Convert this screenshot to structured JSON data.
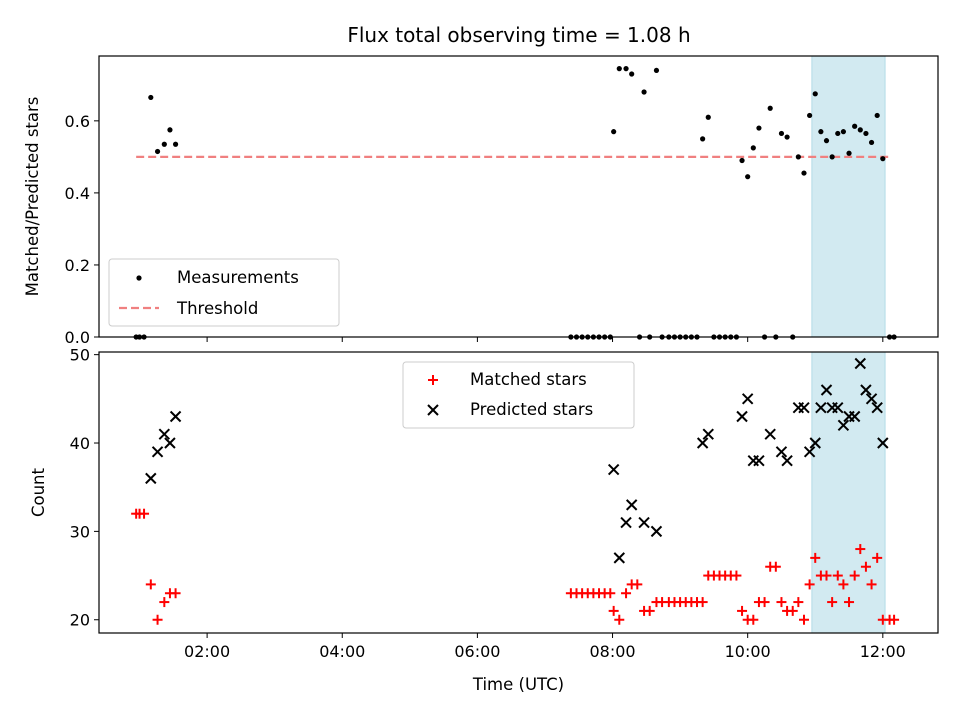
{
  "chart_data": [
    {
      "type": "scatter",
      "title": "Flux total observing time = 1.08 h",
      "xlabel": "",
      "ylabel": "Matched/Predicted stars",
      "xlim": [
        "00:24",
        "12:49"
      ],
      "ylim": [
        0.0,
        0.78
      ],
      "yticks": [
        "0.0",
        "0.2",
        "0.4",
        "0.6"
      ],
      "ytick_values": [
        0.0,
        0.2,
        0.4,
        0.6
      ],
      "legend_position": "lower-left",
      "threshold": {
        "name": "Threshold",
        "y": 0.5,
        "x_start": "00:57",
        "x_end": "12:05",
        "color": "#f08080"
      },
      "highlight_band": {
        "x_start": "10:57",
        "x_end": "12:02",
        "color": "#add8e6"
      },
      "series": [
        {
          "name": "Measurements",
          "color": "#000000",
          "points": [
            [
              "00:57",
              0.0
            ],
            [
              "01:00",
              0.0
            ],
            [
              "01:04",
              0.0
            ],
            [
              "01:10",
              0.665
            ],
            [
              "01:16",
              0.515
            ],
            [
              "01:22",
              0.535
            ],
            [
              "01:27",
              0.575
            ],
            [
              "01:32",
              0.535
            ],
            [
              "07:23",
              0.0
            ],
            [
              "07:28",
              0.0
            ],
            [
              "07:33",
              0.0
            ],
            [
              "07:38",
              0.0
            ],
            [
              "07:43",
              0.0
            ],
            [
              "07:48",
              0.0
            ],
            [
              "07:53",
              0.0
            ],
            [
              "07:58",
              0.0
            ],
            [
              "08:01",
              0.57
            ],
            [
              "08:06",
              0.745
            ],
            [
              "08:12",
              0.745
            ],
            [
              "08:17",
              0.73
            ],
            [
              "08:24",
              0.0
            ],
            [
              "08:28",
              0.68
            ],
            [
              "08:33",
              0.0
            ],
            [
              "08:39",
              0.74
            ],
            [
              "08:44",
              0.0
            ],
            [
              "08:50",
              0.0
            ],
            [
              "08:55",
              0.0
            ],
            [
              "09:00",
              0.0
            ],
            [
              "09:05",
              0.0
            ],
            [
              "09:10",
              0.0
            ],
            [
              "09:15",
              0.0
            ],
            [
              "09:20",
              0.55
            ],
            [
              "09:25",
              0.61
            ],
            [
              "09:30",
              0.0
            ],
            [
              "09:35",
              0.0
            ],
            [
              "09:40",
              0.0
            ],
            [
              "09:45",
              0.0
            ],
            [
              "09:50",
              0.0
            ],
            [
              "09:55",
              0.49
            ],
            [
              "10:00",
              0.445
            ],
            [
              "10:05",
              0.525
            ],
            [
              "10:10",
              0.58
            ],
            [
              "10:15",
              0.0
            ],
            [
              "10:20",
              0.635
            ],
            [
              "10:25",
              0.0
            ],
            [
              "10:30",
              0.565
            ],
            [
              "10:35",
              0.555
            ],
            [
              "10:40",
              0.0
            ],
            [
              "10:45",
              0.5
            ],
            [
              "10:50",
              0.455
            ],
            [
              "10:55",
              0.615
            ],
            [
              "11:00",
              0.675
            ],
            [
              "11:05",
              0.57
            ],
            [
              "11:10",
              0.545
            ],
            [
              "11:15",
              0.5
            ],
            [
              "11:20",
              0.565
            ],
            [
              "11:25",
              0.57
            ],
            [
              "11:30",
              0.51
            ],
            [
              "11:35",
              0.585
            ],
            [
              "11:40",
              0.575
            ],
            [
              "11:45",
              0.565
            ],
            [
              "11:50",
              0.54
            ],
            [
              "11:55",
              0.615
            ],
            [
              "12:00",
              0.495
            ],
            [
              "12:06",
              0.0
            ],
            [
              "12:10",
              0.0
            ]
          ]
        }
      ]
    },
    {
      "type": "scatter",
      "title": "",
      "xlabel": "Time (UTC)",
      "ylabel": "Count",
      "xlim": [
        "00:24",
        "12:49"
      ],
      "ylim": [
        18.5,
        50.3
      ],
      "yticks": [
        "20",
        "30",
        "40",
        "50"
      ],
      "ytick_values": [
        20,
        30,
        40,
        50
      ],
      "xticks": [
        "02:00",
        "04:00",
        "06:00",
        "08:00",
        "10:00",
        "12:00"
      ],
      "legend_position": "top-center",
      "highlight_band": {
        "x_start": "10:57",
        "x_end": "12:02",
        "color": "#add8e6"
      },
      "series": [
        {
          "name": "Matched stars",
          "marker": "plus",
          "color": "#ff0000",
          "points": [
            [
              "00:57",
              32
            ],
            [
              "01:00",
              32
            ],
            [
              "01:04",
              32
            ],
            [
              "01:10",
              24
            ],
            [
              "01:16",
              20
            ],
            [
              "01:22",
              22
            ],
            [
              "01:27",
              23
            ],
            [
              "01:32",
              23
            ],
            [
              "07:23",
              23
            ],
            [
              "07:28",
              23
            ],
            [
              "07:33",
              23
            ],
            [
              "07:38",
              23
            ],
            [
              "07:43",
              23
            ],
            [
              "07:48",
              23
            ],
            [
              "07:53",
              23
            ],
            [
              "07:58",
              23
            ],
            [
              "08:01",
              21
            ],
            [
              "08:06",
              20
            ],
            [
              "08:12",
              23
            ],
            [
              "08:17",
              24
            ],
            [
              "08:22",
              24
            ],
            [
              "08:28",
              21
            ],
            [
              "08:33",
              21
            ],
            [
              "08:39",
              22
            ],
            [
              "08:44",
              22
            ],
            [
              "08:50",
              22
            ],
            [
              "08:55",
              22
            ],
            [
              "09:00",
              22
            ],
            [
              "09:05",
              22
            ],
            [
              "09:10",
              22
            ],
            [
              "09:15",
              22
            ],
            [
              "09:20",
              22
            ],
            [
              "09:25",
              25
            ],
            [
              "09:30",
              25
            ],
            [
              "09:35",
              25
            ],
            [
              "09:40",
              25
            ],
            [
              "09:45",
              25
            ],
            [
              "09:50",
              25
            ],
            [
              "09:55",
              21
            ],
            [
              "10:00",
              20
            ],
            [
              "10:05",
              20
            ],
            [
              "10:10",
              22
            ],
            [
              "10:15",
              22
            ],
            [
              "10:20",
              26
            ],
            [
              "10:25",
              26
            ],
            [
              "10:30",
              22
            ],
            [
              "10:35",
              21
            ],
            [
              "10:40",
              21
            ],
            [
              "10:45",
              22
            ],
            [
              "10:50",
              20
            ],
            [
              "10:55",
              24
            ],
            [
              "11:00",
              27
            ],
            [
              "11:05",
              25
            ],
            [
              "11:10",
              25
            ],
            [
              "11:15",
              22
            ],
            [
              "11:20",
              25
            ],
            [
              "11:25",
              24
            ],
            [
              "11:30",
              22
            ],
            [
              "11:35",
              25
            ],
            [
              "11:40",
              28
            ],
            [
              "11:45",
              26
            ],
            [
              "11:50",
              24
            ],
            [
              "11:55",
              27
            ],
            [
              "12:00",
              20
            ],
            [
              "12:06",
              20
            ],
            [
              "12:10",
              20
            ]
          ]
        },
        {
          "name": "Predicted stars",
          "marker": "x",
          "color": "#000000",
          "points": [
            [
              "01:10",
              36
            ],
            [
              "01:16",
              39
            ],
            [
              "01:22",
              41
            ],
            [
              "01:27",
              40
            ],
            [
              "01:32",
              43
            ],
            [
              "08:01",
              37
            ],
            [
              "08:06",
              27
            ],
            [
              "08:12",
              31
            ],
            [
              "08:17",
              33
            ],
            [
              "08:28",
              31
            ],
            [
              "08:39",
              30
            ],
            [
              "09:20",
              40
            ],
            [
              "09:25",
              41
            ],
            [
              "09:55",
              43
            ],
            [
              "10:00",
              45
            ],
            [
              "10:05",
              38
            ],
            [
              "10:10",
              38
            ],
            [
              "10:20",
              41
            ],
            [
              "10:30",
              39
            ],
            [
              "10:35",
              38
            ],
            [
              "10:45",
              44
            ],
            [
              "10:50",
              44
            ],
            [
              "10:55",
              39
            ],
            [
              "11:00",
              40
            ],
            [
              "11:05",
              44
            ],
            [
              "11:10",
              46
            ],
            [
              "11:15",
              44
            ],
            [
              "11:20",
              44
            ],
            [
              "11:25",
              42
            ],
            [
              "11:30",
              43
            ],
            [
              "11:35",
              43
            ],
            [
              "11:40",
              49
            ],
            [
              "11:45",
              46
            ],
            [
              "11:50",
              45
            ],
            [
              "11:55",
              44
            ],
            [
              "12:00",
              40
            ]
          ]
        }
      ]
    }
  ]
}
